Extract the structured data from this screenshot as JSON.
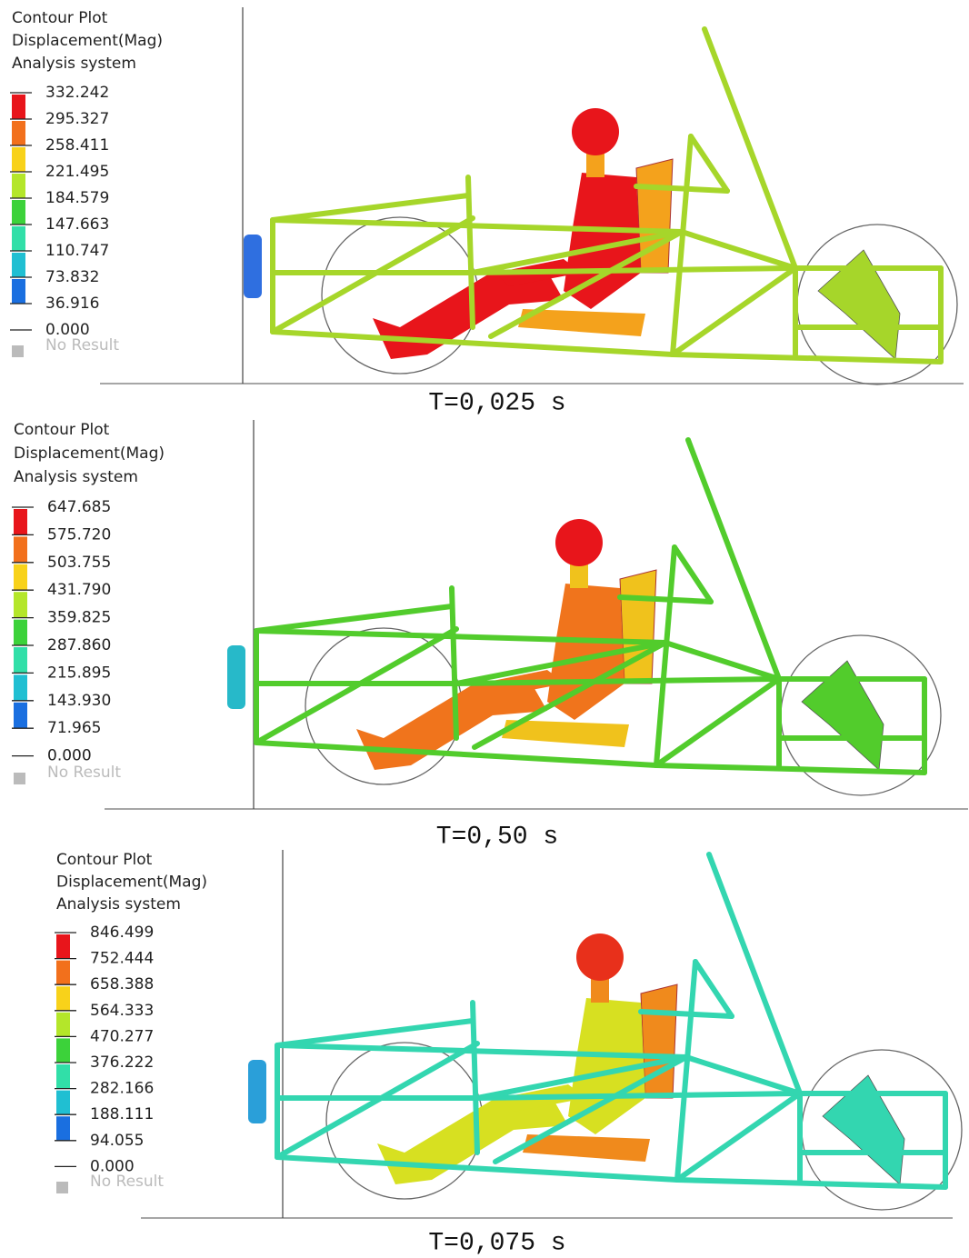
{
  "panels": [
    {
      "title_lines": [
        "Contour Plot",
        "Displacement(Mag)",
        "Analysis system"
      ],
      "legend_labels": [
        "332.242",
        "295.327",
        "258.411",
        "221.495",
        "184.579",
        "147.663",
        "110.747",
        "73.832",
        "36.916",
        "0.000"
      ],
      "no_result": "No Result",
      "caption": "T=0,025 s"
    },
    {
      "title_lines": [
        "Contour Plot",
        "Displacement(Mag)",
        "Analysis system"
      ],
      "legend_labels": [
        "647.685",
        "575.720",
        "503.755",
        "431.790",
        "359.825",
        "287.860",
        "215.895",
        "143.930",
        "71.965",
        "0.000"
      ],
      "no_result": "No Result",
      "caption": "T=0,50 s"
    },
    {
      "title_lines": [
        "Contour Plot",
        "Displacement(Mag)",
        "Analysis system"
      ],
      "legend_labels": [
        "846.499",
        "752.444",
        "658.388",
        "564.333",
        "470.277",
        "376.222",
        "282.166",
        "188.111",
        "94.055",
        "0.000"
      ],
      "no_result": "No Result",
      "caption": "T=0,075 s"
    }
  ]
}
